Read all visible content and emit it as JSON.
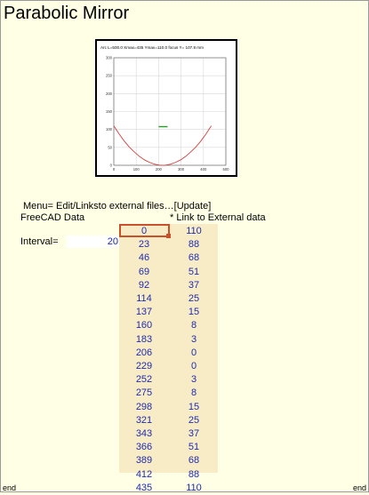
{
  "title": "Parabolic Mirror",
  "menu_hint": "Menu= Edit/Linksto external files…[Update]",
  "freecad_label": "FreeCAD Data",
  "link_label": "* Link to External data",
  "interval": {
    "label": "Interval=",
    "value": "20"
  },
  "end_left": "end",
  "end_right": "end",
  "table": [
    {
      "x": "0",
      "y": "110"
    },
    {
      "x": "23",
      "y": "88"
    },
    {
      "x": "46",
      "y": "68"
    },
    {
      "x": "69",
      "y": "51"
    },
    {
      "x": "92",
      "y": "37"
    },
    {
      "x": "114",
      "y": "25"
    },
    {
      "x": "137",
      "y": "15"
    },
    {
      "x": "160",
      "y": "8"
    },
    {
      "x": "183",
      "y": "3"
    },
    {
      "x": "206",
      "y": "0"
    },
    {
      "x": "229",
      "y": "0"
    },
    {
      "x": "252",
      "y": "3"
    },
    {
      "x": "275",
      "y": "8"
    },
    {
      "x": "298",
      "y": "15"
    },
    {
      "x": "321",
      "y": "25"
    },
    {
      "x": "343",
      "y": "37"
    },
    {
      "x": "366",
      "y": "51"
    },
    {
      "x": "389",
      "y": "68"
    },
    {
      "x": "412",
      "y": "88"
    },
    {
      "x": "435",
      "y": "110"
    }
  ],
  "colors": {
    "curve": "#d04040",
    "focus_marker": "#2a9a2a",
    "selection": "#c8502a",
    "cell_text": "#1e2bb0"
  },
  "chart_data": {
    "type": "line",
    "title": "Arc L=500.0 Xmax=435 Ymax=110.0 focus Y= 107.8 mm",
    "xlim": [
      0,
      500
    ],
    "ylim": [
      0,
      300
    ],
    "xticks": [
      0,
      100,
      200,
      300,
      400,
      500
    ],
    "yticks": [
      0,
      50,
      100,
      150,
      200,
      250,
      300
    ],
    "grid": true,
    "x": [
      0,
      23,
      46,
      69,
      92,
      114,
      137,
      160,
      183,
      206,
      229,
      252,
      275,
      298,
      321,
      343,
      366,
      389,
      412,
      435
    ],
    "y": [
      110,
      88,
      68,
      51,
      37,
      25,
      15,
      8,
      3,
      0,
      0,
      3,
      8,
      15,
      25,
      37,
      51,
      68,
      88,
      110
    ],
    "focus": {
      "x": [
        200,
        240
      ],
      "y": [
        107.8,
        107.8
      ]
    }
  }
}
